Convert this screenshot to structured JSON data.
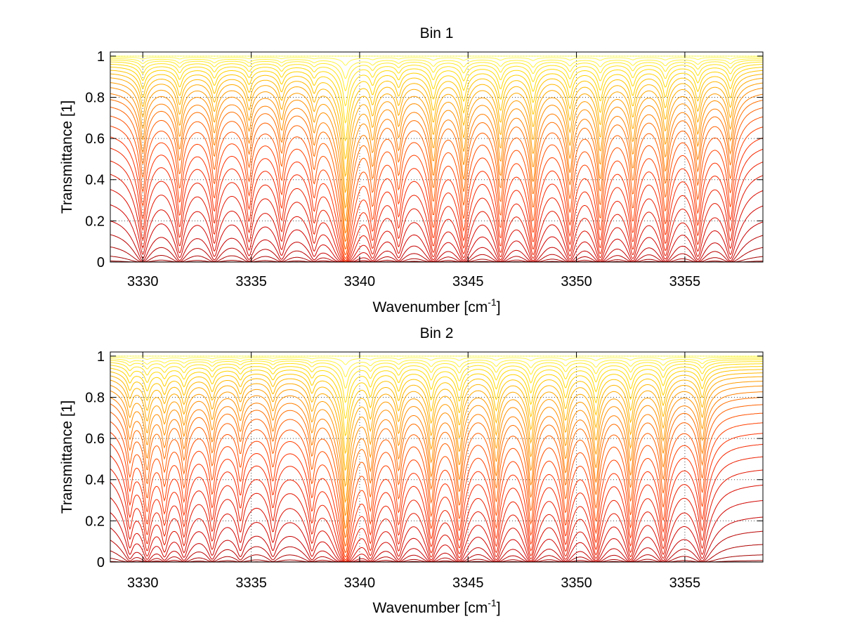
{
  "chart_data": [
    {
      "type": "line",
      "title": "Bin 1",
      "xlabel": "Wavenumber [cm",
      "xlabel_sup": "-1",
      "xlabel_end": "]",
      "ylabel": "Transmittance [1]",
      "xlim": [
        3328.5,
        3358.6
      ],
      "ylim": [
        0,
        1.02
      ],
      "xticks": [
        3330,
        3335,
        3340,
        3345,
        3350,
        3355
      ],
      "xtick_labels": [
        "3330",
        "3335",
        "3340",
        "3345",
        "3350",
        "3355"
      ],
      "yticks": [
        0,
        0.2,
        0.4,
        0.6,
        0.8,
        1
      ],
      "ytick_labels": [
        "0",
        "0.2",
        "0.4",
        "0.6",
        "0.8",
        "1"
      ],
      "grid": true,
      "absorption_lines": [
        {
          "center": 3330.0,
          "strength": 0.55
        },
        {
          "center": 3331.7,
          "strength": 0.5
        },
        {
          "center": 3333.3,
          "strength": 0.45
        },
        {
          "center": 3334.9,
          "strength": 0.42
        },
        {
          "center": 3336.4,
          "strength": 0.4
        },
        {
          "center": 3337.9,
          "strength": 0.38
        },
        {
          "center": 3339.35,
          "strength": 2.2
        },
        {
          "center": 3340.6,
          "strength": 0.6
        },
        {
          "center": 3341.8,
          "strength": 0.45
        },
        {
          "center": 3343.4,
          "strength": 0.8
        },
        {
          "center": 3344.8,
          "strength": 0.85
        },
        {
          "center": 3346.5,
          "strength": 0.8
        },
        {
          "center": 3348.0,
          "strength": 0.9
        },
        {
          "center": 3349.7,
          "strength": 0.75
        },
        {
          "center": 3351.1,
          "strength": 0.85
        },
        {
          "center": 3352.6,
          "strength": 0.7
        },
        {
          "center": 3354.1,
          "strength": 0.75
        },
        {
          "center": 3355.6,
          "strength": 0.6
        },
        {
          "center": 3357.1,
          "strength": 0.55
        }
      ],
      "column_scales": [
        0.0,
        0.02,
        0.05,
        0.08,
        0.12,
        0.17,
        0.23,
        0.3,
        0.38,
        0.47,
        0.58,
        0.7,
        0.85,
        1.0,
        1.2,
        1.45,
        1.75,
        2.1,
        2.5,
        3.0,
        3.6,
        4.4,
        5.4,
        6.8,
        8.5,
        11.0,
        15.0,
        22.0,
        35.0
      ],
      "colormap": [
        "#ffff66",
        "#ffd700",
        "#ff8c00",
        "#ff3300",
        "#cc0000",
        "#8b0000"
      ]
    },
    {
      "type": "line",
      "title": "Bin 2",
      "xlabel": "Wavenumber [cm",
      "xlabel_sup": "-1",
      "xlabel_end": "]",
      "ylabel": "Transmittance [1]",
      "xlim": [
        3328.5,
        3358.6
      ],
      "ylim": [
        0,
        1.02
      ],
      "xticks": [
        3330,
        3335,
        3340,
        3345,
        3350,
        3355
      ],
      "xtick_labels": [
        "3330",
        "3335",
        "3340",
        "3345",
        "3350",
        "3355"
      ],
      "yticks": [
        0,
        0.2,
        0.4,
        0.6,
        0.8,
        1
      ],
      "ytick_labels": [
        "0",
        "0.2",
        "0.4",
        "0.6",
        "0.8",
        "1"
      ],
      "grid": true,
      "absorption_lines": [
        {
          "center": 3329.4,
          "strength": 0.35
        },
        {
          "center": 3330.2,
          "strength": 0.55
        },
        {
          "center": 3331.0,
          "strength": 0.4
        },
        {
          "center": 3331.9,
          "strength": 0.45
        },
        {
          "center": 3333.2,
          "strength": 0.4
        },
        {
          "center": 3334.5,
          "strength": 0.3
        },
        {
          "center": 3336.0,
          "strength": 0.3
        },
        {
          "center": 3337.8,
          "strength": 0.4
        },
        {
          "center": 3339.35,
          "strength": 2.0
        },
        {
          "center": 3340.5,
          "strength": 0.65
        },
        {
          "center": 3341.8,
          "strength": 0.55
        },
        {
          "center": 3343.3,
          "strength": 0.8
        },
        {
          "center": 3344.6,
          "strength": 0.85
        },
        {
          "center": 3346.3,
          "strength": 0.8
        },
        {
          "center": 3347.9,
          "strength": 0.95
        },
        {
          "center": 3349.5,
          "strength": 0.75
        },
        {
          "center": 3350.9,
          "strength": 0.9
        },
        {
          "center": 3352.5,
          "strength": 0.8
        },
        {
          "center": 3354.0,
          "strength": 0.7
        },
        {
          "center": 3355.8,
          "strength": 0.55
        }
      ],
      "column_scales": [
        0.0,
        0.02,
        0.05,
        0.08,
        0.12,
        0.17,
        0.23,
        0.3,
        0.38,
        0.47,
        0.58,
        0.7,
        0.85,
        1.0,
        1.2,
        1.45,
        1.75,
        2.1,
        2.5,
        3.0,
        3.6,
        4.4,
        5.4,
        6.8,
        8.5,
        11.0,
        15.0,
        22.0,
        35.0
      ],
      "colormap": [
        "#ffff66",
        "#ffd700",
        "#ff8c00",
        "#ff3300",
        "#cc0000",
        "#8b0000"
      ]
    }
  ]
}
